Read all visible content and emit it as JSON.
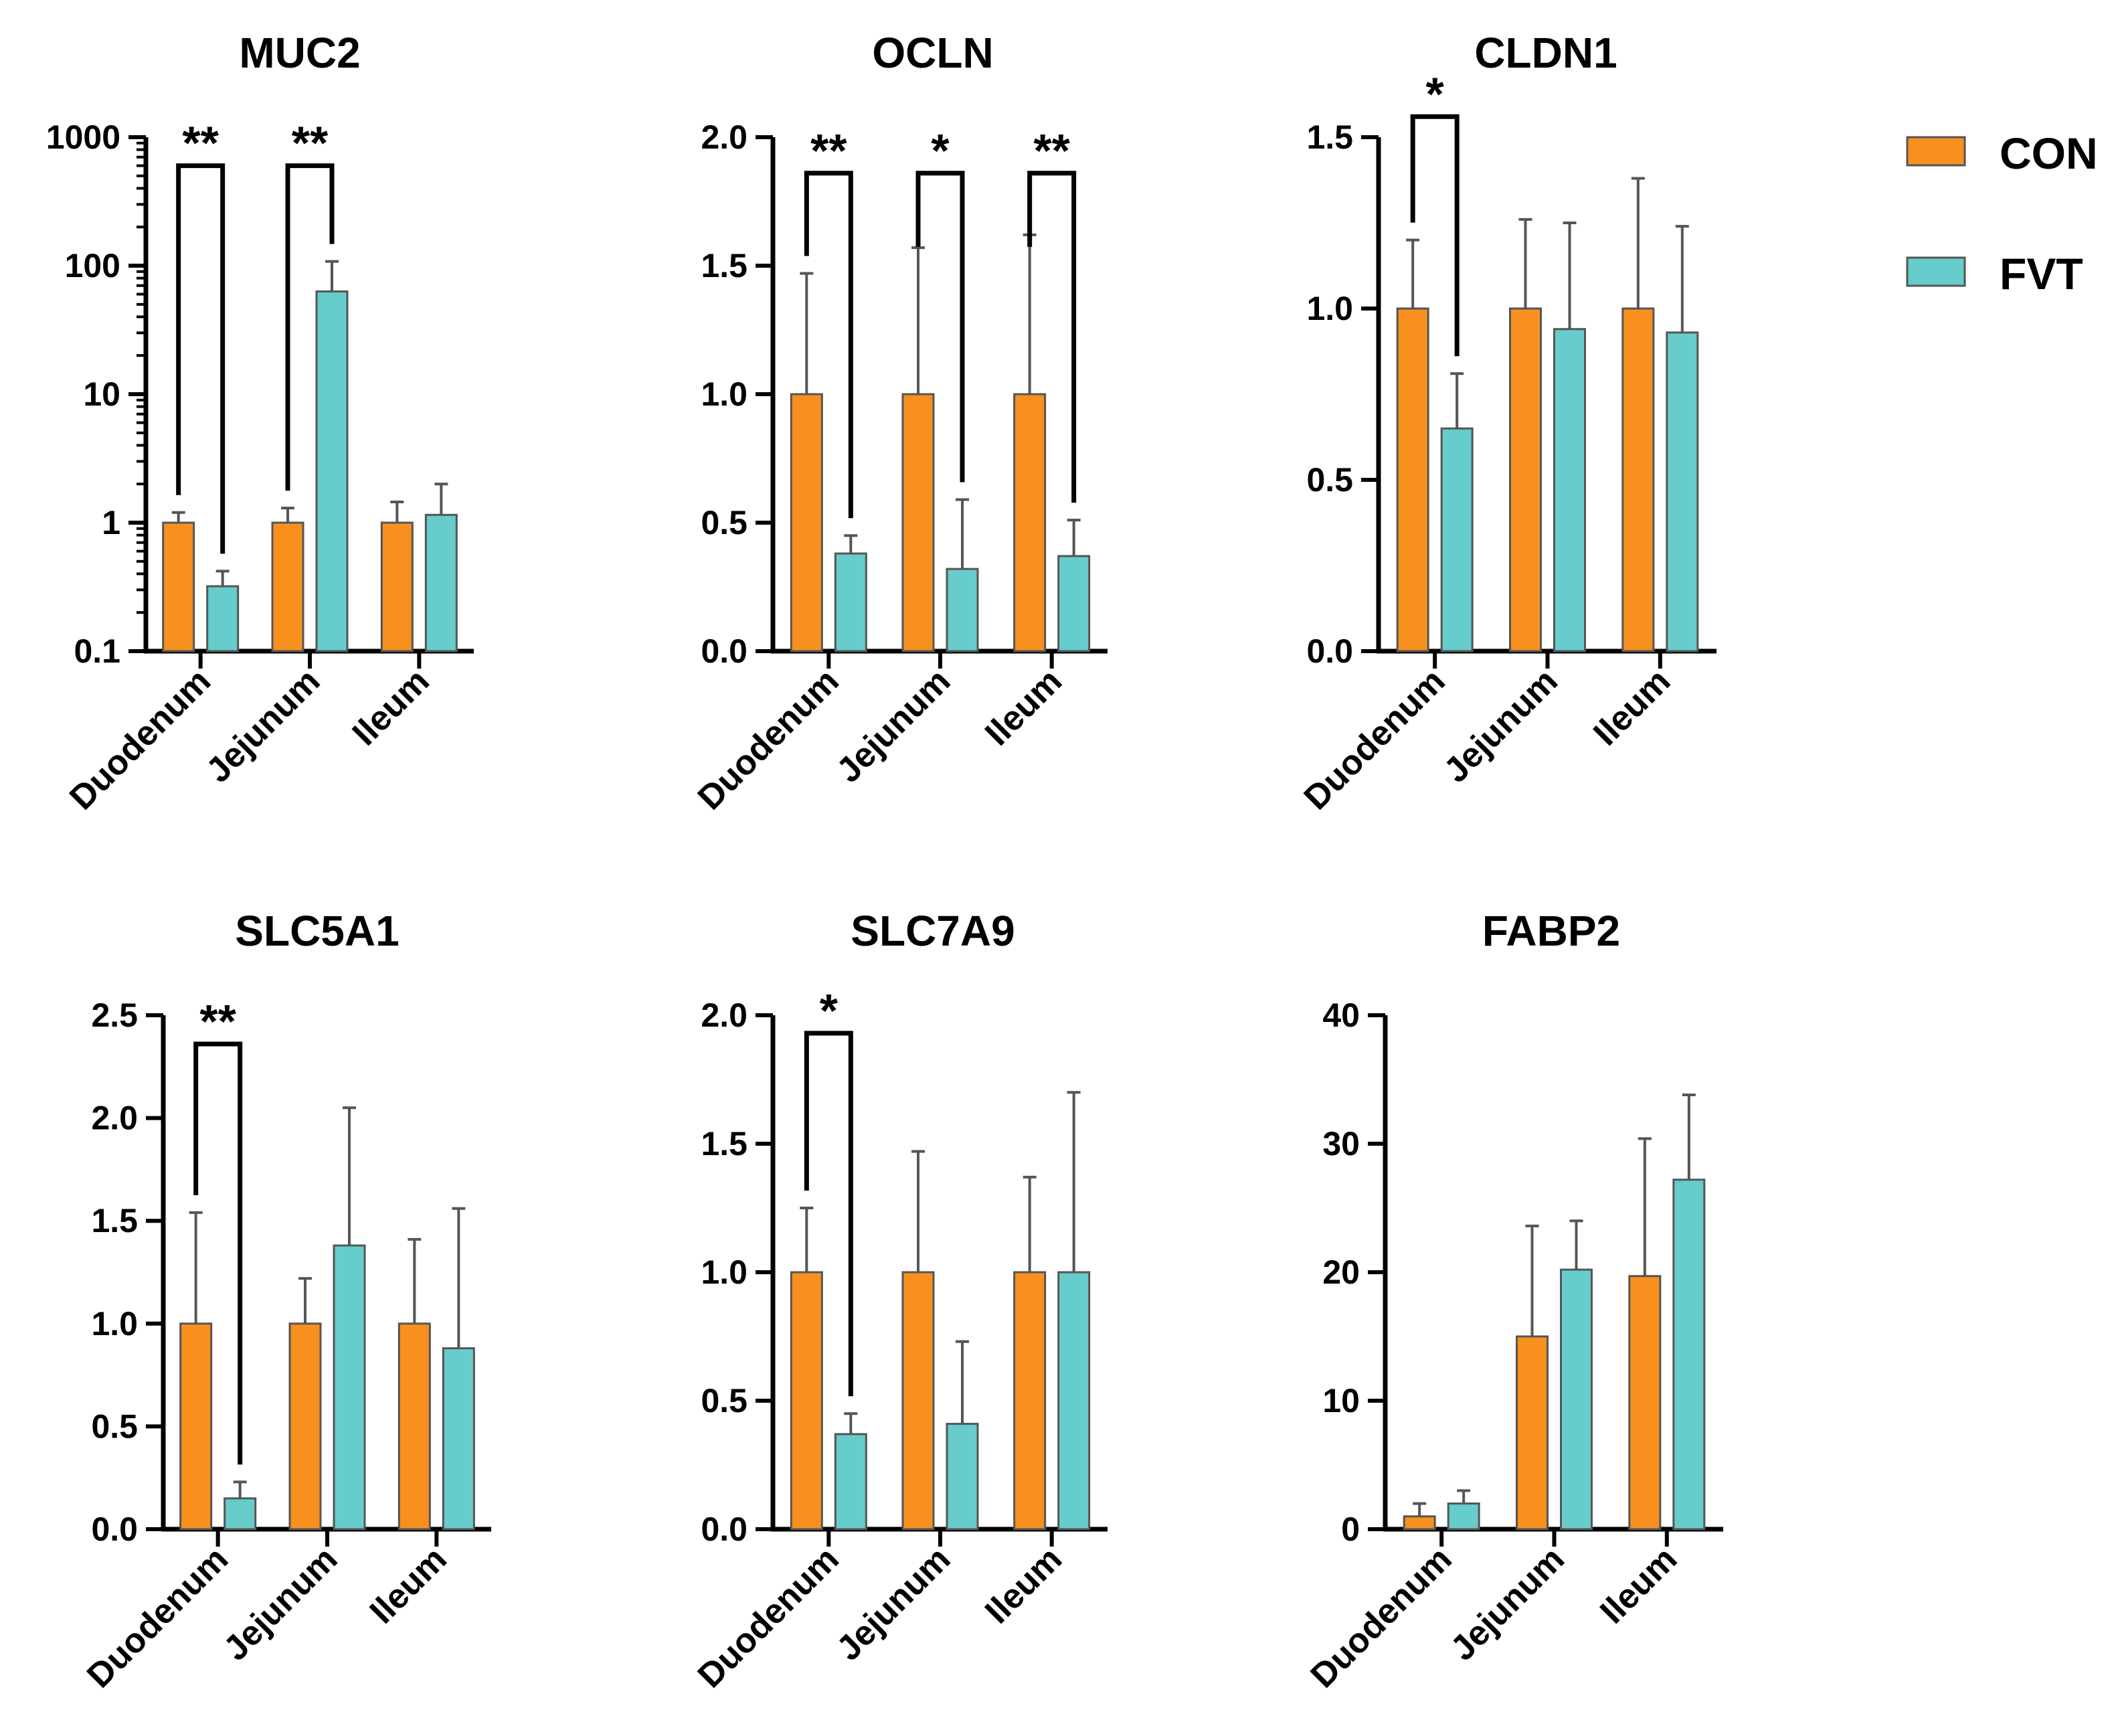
{
  "colors": {
    "CON": "#F8901F",
    "FVT": "#66CDCC",
    "error": "#555555",
    "axis": "#000000",
    "bar_edge": "#555555"
  },
  "legend": {
    "items": [
      {
        "key": "CON",
        "label": "CON"
      },
      {
        "key": "FVT",
        "label": "FVT"
      }
    ]
  },
  "chart_data": [
    {
      "type": "bar",
      "title": "MUC2",
      "yscale": "log",
      "ylim": [
        0.1,
        1000
      ],
      "ticks": [
        0.1,
        1,
        10,
        100,
        1000
      ],
      "tick_labels": [
        "0.1",
        "1",
        "10",
        "100",
        "1000"
      ],
      "categories": [
        "Duodenum",
        "Jejunum",
        "Ileum"
      ],
      "series": [
        {
          "name": "CON",
          "values": [
            1.0,
            1.0,
            1.0
          ],
          "errors": [
            1.2,
            1.3,
            1.45
          ]
        },
        {
          "name": "FVT",
          "values": [
            0.32,
            63,
            1.15
          ],
          "errors": [
            0.42,
            108,
            2.0
          ]
        }
      ],
      "significance": [
        {
          "category": 0,
          "label": "**",
          "top": 600
        },
        {
          "category": 1,
          "label": "**",
          "top": 600
        }
      ]
    },
    {
      "type": "bar",
      "title": "OCLN",
      "yscale": "linear",
      "ylim": [
        0,
        2.0
      ],
      "ticks": [
        0,
        0.5,
        1.0,
        1.5,
        2.0
      ],
      "tick_labels": [
        "0.0",
        "0.5",
        "1.0",
        "1.5",
        "2.0"
      ],
      "categories": [
        "Duodenum",
        "Jejunum",
        "Ileum"
      ],
      "series": [
        {
          "name": "CON",
          "values": [
            1.0,
            1.0,
            1.0
          ],
          "errors": [
            1.47,
            1.57,
            1.62
          ]
        },
        {
          "name": "FVT",
          "values": [
            0.38,
            0.32,
            0.37
          ],
          "errors": [
            0.45,
            0.59,
            0.51
          ]
        }
      ],
      "significance": [
        {
          "category": 0,
          "label": "**",
          "top": 1.86
        },
        {
          "category": 1,
          "label": "*",
          "top": 1.86
        },
        {
          "category": 2,
          "label": "**",
          "top": 1.86
        }
      ]
    },
    {
      "type": "bar",
      "title": "CLDN1",
      "yscale": "linear",
      "ylim": [
        0,
        1.5
      ],
      "ticks": [
        0,
        0.5,
        1.0,
        1.5
      ],
      "tick_labels": [
        "0.0",
        "0.5",
        "1.0",
        "1.5"
      ],
      "categories": [
        "Duodenum",
        "Jejunum",
        "Ileum"
      ],
      "series": [
        {
          "name": "CON",
          "values": [
            1.0,
            1.0,
            1.0
          ],
          "errors": [
            1.2,
            1.26,
            1.38
          ]
        },
        {
          "name": "FVT",
          "values": [
            0.65,
            0.94,
            0.93
          ],
          "errors": [
            0.81,
            1.25,
            1.24
          ]
        }
      ],
      "significance": [
        {
          "category": 0,
          "label": "*",
          "top": 1.56
        }
      ]
    },
    {
      "type": "bar",
      "title": "SLC5A1",
      "yscale": "linear",
      "ylim": [
        0,
        2.5
      ],
      "ticks": [
        0,
        0.5,
        1.0,
        1.5,
        2.0,
        2.5
      ],
      "tick_labels": [
        "0.0",
        "0.5",
        "1.0",
        "1.5",
        "2.0",
        "2.5"
      ],
      "categories": [
        "Duodenum",
        "Jejunum",
        "Ileum"
      ],
      "series": [
        {
          "name": "CON",
          "values": [
            1.0,
            1.0,
            1.0
          ],
          "errors": [
            1.54,
            1.22,
            1.41
          ]
        },
        {
          "name": "FVT",
          "values": [
            0.15,
            1.38,
            0.88
          ],
          "errors": [
            0.23,
            2.05,
            1.56
          ]
        }
      ],
      "significance": [
        {
          "category": 0,
          "label": "**",
          "top": 2.36
        }
      ]
    },
    {
      "type": "bar",
      "title": "SLC7A9",
      "yscale": "linear",
      "ylim": [
        0,
        2.0
      ],
      "ticks": [
        0,
        0.5,
        1.0,
        1.5,
        2.0
      ],
      "tick_labels": [
        "0.0",
        "0.5",
        "1.0",
        "1.5",
        "2.0"
      ],
      "categories": [
        "Duodenum",
        "Jejunum",
        "Ileum"
      ],
      "series": [
        {
          "name": "CON",
          "values": [
            1.0,
            1.0,
            1.0
          ],
          "errors": [
            1.25,
            1.47,
            1.37
          ]
        },
        {
          "name": "FVT",
          "values": [
            0.37,
            0.41,
            1.0
          ],
          "errors": [
            0.45,
            0.73,
            1.7
          ]
        }
      ],
      "significance": [
        {
          "category": 0,
          "label": "*",
          "top": 1.93
        }
      ]
    },
    {
      "type": "bar",
      "title": "FABP2",
      "yscale": "linear",
      "ylim": [
        0,
        40
      ],
      "ticks": [
        0,
        10,
        20,
        30,
        40
      ],
      "tick_labels": [
        "0",
        "10",
        "20",
        "30",
        "40"
      ],
      "categories": [
        "Duodenum",
        "Jejunum",
        "Ileum"
      ],
      "series": [
        {
          "name": "CON",
          "values": [
            1.0,
            15.0,
            19.7
          ],
          "errors": [
            2.0,
            23.6,
            30.4
          ]
        },
        {
          "name": "FVT",
          "values": [
            2.0,
            20.2,
            27.2
          ],
          "errors": [
            3.0,
            24.0,
            33.8
          ]
        }
      ],
      "significance": []
    }
  ]
}
